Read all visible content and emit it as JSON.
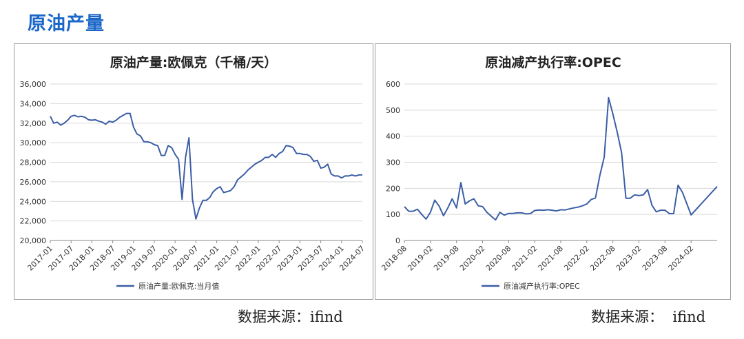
{
  "page_title": "原油产量",
  "source_left": "数据来源：ifind",
  "source_right": "数据来源：  ifind",
  "colors": {
    "title": "#1a67c8",
    "series": "#3b5ea6"
  },
  "chart_data": [
    {
      "type": "line",
      "title": "原油产量:欧佩克（千桶/天）",
      "xlabel": "",
      "ylabel": "",
      "ylim": [
        20000,
        36000
      ],
      "yticks": [
        "20,000",
        "22,000",
        "24,000",
        "26,000",
        "28,000",
        "30,000",
        "32,000",
        "34,000",
        "36,000"
      ],
      "ytick_values": [
        20000,
        22000,
        24000,
        26000,
        28000,
        30000,
        32000,
        34000,
        36000
      ],
      "xlim": [
        "2017-01",
        "2024-07"
      ],
      "xticks": [
        "2017-01",
        "2017-07",
        "2018-01",
        "2018-07",
        "2019-01",
        "2019-07",
        "2020-01",
        "2020-07",
        "2021-01",
        "2021-07",
        "2022-01",
        "2022-07",
        "2023-01",
        "2023-07",
        "2024-01",
        "2024-07"
      ],
      "grid": true,
      "legend_position": "bottom",
      "series": [
        {
          "name": "原油产量:欧佩克:当月值",
          "points": [
            [
              "2017-01",
              32700
            ],
            [
              "2017-02",
              32000
            ],
            [
              "2017-03",
              32100
            ],
            [
              "2017-04",
              31800
            ],
            [
              "2017-05",
              32000
            ],
            [
              "2017-06",
              32300
            ],
            [
              "2017-07",
              32700
            ],
            [
              "2017-08",
              32800
            ],
            [
              "2017-09",
              32650
            ],
            [
              "2017-10",
              32700
            ],
            [
              "2017-11",
              32600
            ],
            [
              "2017-12",
              32350
            ],
            [
              "2018-01",
              32300
            ],
            [
              "2018-02",
              32350
            ],
            [
              "2018-03",
              32200
            ],
            [
              "2018-04",
              32100
            ],
            [
              "2018-05",
              31900
            ],
            [
              "2018-06",
              32200
            ],
            [
              "2018-07",
              32100
            ],
            [
              "2018-08",
              32300
            ],
            [
              "2018-09",
              32600
            ],
            [
              "2018-10",
              32800
            ],
            [
              "2018-11",
              33000
            ],
            [
              "2018-12",
              33000
            ],
            [
              "2019-01",
              31600
            ],
            [
              "2019-02",
              30900
            ],
            [
              "2019-03",
              30700
            ],
            [
              "2019-04",
              30100
            ],
            [
              "2019-05",
              30100
            ],
            [
              "2019-06",
              30000
            ],
            [
              "2019-07",
              29800
            ],
            [
              "2019-08",
              29700
            ],
            [
              "2019-09",
              28700
            ],
            [
              "2019-10",
              28700
            ],
            [
              "2019-11",
              29700
            ],
            [
              "2019-12",
              29500
            ],
            [
              "2020-01",
              28800
            ],
            [
              "2020-02",
              28300
            ],
            [
              "2020-03",
              24200
            ],
            [
              "2020-04",
              28500
            ],
            [
              "2020-05",
              30500
            ],
            [
              "2020-06",
              24200
            ],
            [
              "2020-07",
              22200
            ],
            [
              "2020-08",
              23300
            ],
            [
              "2020-09",
              24100
            ],
            [
              "2020-10",
              24100
            ],
            [
              "2020-11",
              24400
            ],
            [
              "2020-12",
              25000
            ],
            [
              "2021-01",
              25300
            ],
            [
              "2021-02",
              25500
            ],
            [
              "2021-03",
              24900
            ],
            [
              "2021-04",
              25000
            ],
            [
              "2021-05",
              25100
            ],
            [
              "2021-06",
              25500
            ],
            [
              "2021-07",
              26200
            ],
            [
              "2021-08",
              26500
            ],
            [
              "2021-09",
              26800
            ],
            [
              "2021-10",
              27200
            ],
            [
              "2021-11",
              27500
            ],
            [
              "2021-12",
              27800
            ],
            [
              "2022-01",
              28000
            ],
            [
              "2022-02",
              28200
            ],
            [
              "2022-03",
              28500
            ],
            [
              "2022-04",
              28500
            ],
            [
              "2022-05",
              28800
            ],
            [
              "2022-06",
              28500
            ],
            [
              "2022-07",
              28900
            ],
            [
              "2022-08",
              29100
            ],
            [
              "2022-09",
              29700
            ],
            [
              "2022-10",
              29650
            ],
            [
              "2022-11",
              29500
            ],
            [
              "2022-12",
              28900
            ],
            [
              "2023-01",
              28900
            ],
            [
              "2023-02",
              28800
            ],
            [
              "2023-03",
              28800
            ],
            [
              "2023-04",
              28600
            ],
            [
              "2023-05",
              28100
            ],
            [
              "2023-06",
              28200
            ],
            [
              "2023-07",
              27400
            ],
            [
              "2023-08",
              27500
            ],
            [
              "2023-09",
              27800
            ],
            [
              "2023-10",
              26800
            ],
            [
              "2023-11",
              26600
            ],
            [
              "2023-12",
              26600
            ],
            [
              "2024-01",
              26400
            ],
            [
              "2024-02",
              26600
            ],
            [
              "2024-03",
              26600
            ],
            [
              "2024-04",
              26700
            ],
            [
              "2024-05",
              26600
            ],
            [
              "2024-06",
              26700
            ],
            [
              "2024-07",
              26700
            ]
          ]
        }
      ]
    },
    {
      "type": "line",
      "title": "原油减产执行率:OPEC",
      "xlabel": "",
      "ylabel": "",
      "ylim": [
        0,
        600
      ],
      "yticks": [
        "0",
        "100",
        "200",
        "300",
        "400",
        "500",
        "600"
      ],
      "ytick_values": [
        0,
        100,
        200,
        300,
        400,
        500,
        600
      ],
      "xlim": [
        "2018-08",
        "2024-08"
      ],
      "xticks": [
        "2018-08",
        "2019-02",
        "2019-08",
        "2020-02",
        "2020-08",
        "2021-02",
        "2021-08",
        "2022-02",
        "2022-08",
        "2023-02",
        "2023-08",
        "2024-02"
      ],
      "grid": true,
      "legend_position": "bottom",
      "series": [
        {
          "name": "原油减产执行率:OPEC",
          "points": [
            [
              "2018-08",
              130
            ],
            [
              "2018-09",
              112
            ],
            [
              "2018-10",
              112
            ],
            [
              "2018-11",
              120
            ],
            [
              "2018-12",
              100
            ],
            [
              "2019-01",
              82
            ],
            [
              "2019-02",
              108
            ],
            [
              "2019-03",
              155
            ],
            [
              "2019-04",
              132
            ],
            [
              "2019-05",
              95
            ],
            [
              "2019-06",
              125
            ],
            [
              "2019-07",
              160
            ],
            [
              "2019-08",
              125
            ],
            [
              "2019-09",
              222
            ],
            [
              "2019-10",
              140
            ],
            [
              "2019-11",
              152
            ],
            [
              "2019-12",
              160
            ],
            [
              "2020-01",
              133
            ],
            [
              "2020-02",
              130
            ],
            [
              "2020-03",
              108
            ],
            [
              "2020-04",
              93
            ],
            [
              "2020-05",
              79
            ],
            [
              "2020-06",
              108
            ],
            [
              "2020-07",
              97
            ],
            [
              "2020-08",
              104
            ],
            [
              "2020-09",
              104
            ],
            [
              "2020-10",
              106
            ],
            [
              "2020-11",
              106
            ],
            [
              "2020-12",
              102
            ],
            [
              "2021-01",
              103
            ],
            [
              "2021-02",
              115
            ],
            [
              "2021-03",
              117
            ],
            [
              "2021-04",
              116
            ],
            [
              "2021-05",
              118
            ],
            [
              "2021-06",
              116
            ],
            [
              "2021-07",
              113
            ],
            [
              "2021-08",
              118
            ],
            [
              "2021-09",
              117
            ],
            [
              "2021-10",
              121
            ],
            [
              "2021-11",
              125
            ],
            [
              "2021-12",
              128
            ],
            [
              "2022-01",
              133
            ],
            [
              "2022-02",
              140
            ],
            [
              "2022-03",
              157
            ],
            [
              "2022-04",
              163
            ],
            [
              "2022-05",
              250
            ],
            [
              "2022-06",
              320
            ],
            [
              "2022-07",
              548
            ],
            [
              "2022-08",
              485
            ],
            [
              "2022-09",
              415
            ],
            [
              "2022-10",
              337
            ],
            [
              "2022-11",
              162
            ],
            [
              "2022-12",
              162
            ],
            [
              "2023-01",
              175
            ],
            [
              "2023-02",
              172
            ],
            [
              "2023-03",
              175
            ],
            [
              "2023-04",
              195
            ],
            [
              "2023-05",
              135
            ],
            [
              "2023-06",
              110
            ],
            [
              "2023-07",
              116
            ],
            [
              "2023-08",
              116
            ],
            [
              "2023-09",
              103
            ],
            [
              "2023-10",
              103
            ],
            [
              "2023-11",
              212
            ],
            [
              "2023-12",
              185
            ],
            [
              "2024-02",
              98
            ],
            [
              "2024-08",
              207
            ]
          ]
        }
      ]
    }
  ]
}
